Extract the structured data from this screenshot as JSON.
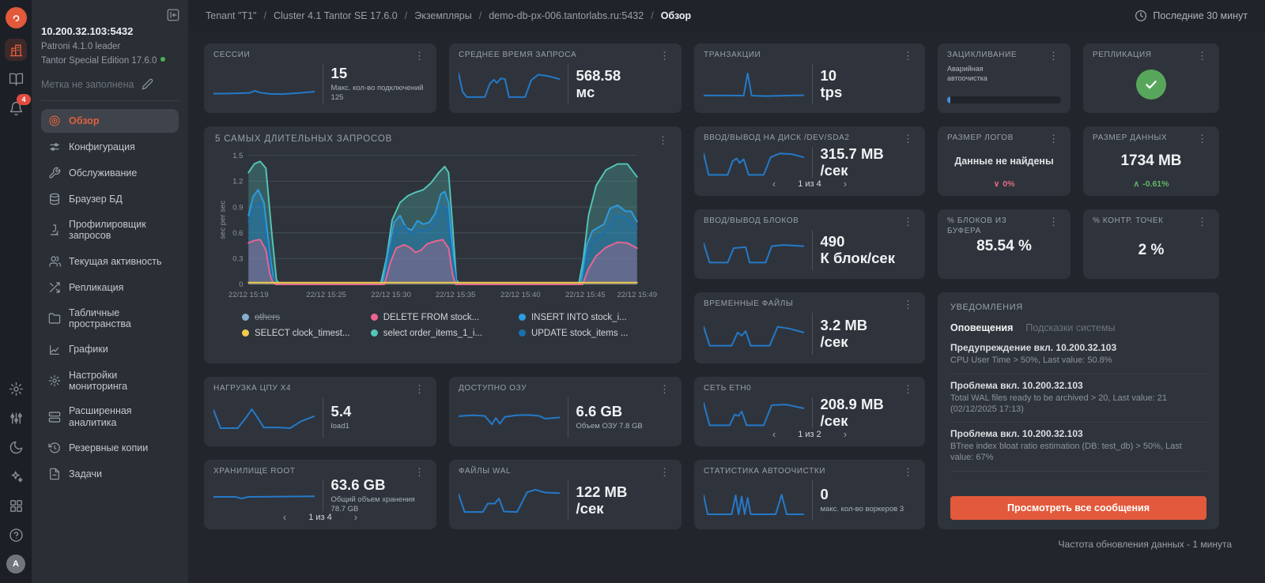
{
  "topbar": {
    "breadcrumbs": [
      "Tenant \"T1\"",
      "Cluster 4.1 Tantor SE 17.6.0",
      "Экземпляры",
      "demo-db-px-006.tantorlabs.ru:5432",
      "Обзор"
    ],
    "time_range": "Последние 30 минут"
  },
  "rail": {
    "notifications_badge": "4",
    "avatar_initial": "A"
  },
  "sidebar": {
    "host": "10.200.32.103:5432",
    "agent": "Patroni 4.1.0 leader",
    "edition": "Tantor Special Edition 17.6.0",
    "label_placeholder": "Метка не заполнена",
    "menu": [
      {
        "label": "Обзор",
        "active": true
      },
      {
        "label": "Конфигурация"
      },
      {
        "label": "Обслуживание"
      },
      {
        "label": "Браузер БД"
      },
      {
        "label": "Профилировщик запросов"
      },
      {
        "label": "Текущая активность"
      },
      {
        "label": "Репликация"
      },
      {
        "label": "Табличные пространства"
      },
      {
        "label": "Графики"
      },
      {
        "label": "Настройки мониторинга"
      },
      {
        "label": "Расширенная аналитика"
      },
      {
        "label": "Резервные копии"
      },
      {
        "label": "Задачи"
      }
    ]
  },
  "colors": {
    "accent": "#e2593b",
    "spark": "#2479c9",
    "check_green": "#58a65c",
    "trend_down": "#e56a86",
    "trend_up": "#63b567"
  },
  "cards": {
    "sessions": {
      "title": "СЕССИИ",
      "value": "15",
      "subtitle": "Макс. кол-во подключений 125",
      "spark": [
        [
          0,
          24
        ],
        [
          12,
          24
        ],
        [
          26,
          25
        ],
        [
          36,
          26
        ],
        [
          41,
          33
        ],
        [
          46,
          27
        ],
        [
          56,
          23
        ],
        [
          68,
          22
        ],
        [
          82,
          25
        ],
        [
          100,
          30
        ]
      ]
    },
    "avg_query": {
      "title": "СРЕДНЕЕ ВРЕМЯ ЗАПРОСА",
      "value": "568.58",
      "unit": "мс",
      "spark": [
        [
          0,
          88
        ],
        [
          4,
          30
        ],
        [
          8,
          13
        ],
        [
          26,
          13
        ],
        [
          31,
          55
        ],
        [
          35,
          68
        ],
        [
          38,
          58
        ],
        [
          42,
          72
        ],
        [
          46,
          70
        ],
        [
          50,
          13
        ],
        [
          66,
          13
        ],
        [
          72,
          66
        ],
        [
          79,
          84
        ],
        [
          88,
          80
        ],
        [
          100,
          70
        ]
      ]
    },
    "transactions": {
      "title": "ТРАНЗАКЦИИ",
      "value": "10",
      "unit": "tps",
      "spark": [
        [
          0,
          18
        ],
        [
          30,
          18
        ],
        [
          40,
          17
        ],
        [
          44,
          88
        ],
        [
          48,
          17
        ],
        [
          62,
          16
        ],
        [
          80,
          17
        ],
        [
          100,
          19
        ]
      ]
    },
    "wraparound": {
      "title": "ЗАЦИКЛИВАНИЕ",
      "label": "Аварийная автоочистка"
    },
    "replication": {
      "title": "РЕПЛИКАЦИЯ"
    },
    "disk_io": {
      "title": "ВВОД/ВЫВОД НА ДИСК /DEV/SDA2",
      "value": "315.7 MB",
      "unit": "/сек",
      "pager": "1 из 4",
      "spark": [
        [
          0,
          82
        ],
        [
          5,
          14
        ],
        [
          24,
          14
        ],
        [
          29,
          58
        ],
        [
          33,
          66
        ],
        [
          36,
          52
        ],
        [
          40,
          64
        ],
        [
          45,
          14
        ],
        [
          60,
          14
        ],
        [
          67,
          70
        ],
        [
          76,
          82
        ],
        [
          88,
          80
        ],
        [
          100,
          70
        ]
      ]
    },
    "log_size": {
      "title": "РАЗМЕР ЛОГОВ",
      "empty_text": "Данные не найдены",
      "trend": "0%"
    },
    "data_size": {
      "title": "РАЗМЕР ДАННЫХ",
      "value": "1734 MB",
      "trend": "-0.61%"
    },
    "block_io": {
      "title": "ВВОД/ВЫВОД БЛОКОВ",
      "value": "490",
      "unit": "К блок/сек",
      "spark": [
        [
          0,
          75
        ],
        [
          6,
          14
        ],
        [
          24,
          14
        ],
        [
          30,
          60
        ],
        [
          42,
          63
        ],
        [
          46,
          14
        ],
        [
          62,
          14
        ],
        [
          68,
          66
        ],
        [
          80,
          70
        ],
        [
          100,
          66
        ]
      ]
    },
    "buffer_pct": {
      "title": "% БЛОКОВ ИЗ БУФЕРА",
      "value": "85.54 %"
    },
    "checkpoint_pct": {
      "title": "% КОНТР. ТОЧЕК",
      "value": "2 %"
    },
    "temp_files": {
      "title": "ВРЕМЕННЫЕ ФАЙЛЫ",
      "value": "3.2 MB",
      "unit": "/сек",
      "spark": [
        [
          0,
          76
        ],
        [
          6,
          16
        ],
        [
          28,
          16
        ],
        [
          34,
          58
        ],
        [
          38,
          48
        ],
        [
          42,
          62
        ],
        [
          47,
          16
        ],
        [
          66,
          16
        ],
        [
          74,
          76
        ],
        [
          86,
          70
        ],
        [
          100,
          58
        ]
      ]
    },
    "cpu_load": {
      "title": "НАГРУЗКА ЦПУ X4",
      "value": "5.4",
      "subtitle": "load1",
      "spark": [
        [
          0,
          78
        ],
        [
          7,
          20
        ],
        [
          24,
          20
        ],
        [
          32,
          52
        ],
        [
          38,
          80
        ],
        [
          44,
          52
        ],
        [
          50,
          22
        ],
        [
          64,
          22
        ],
        [
          76,
          20
        ],
        [
          87,
          42
        ],
        [
          100,
          58
        ]
      ]
    },
    "ram": {
      "title": "ДОСТУПНО ОЗУ",
      "value": "6.6 GB",
      "subtitle": "Объем ОЗУ 7.8 GB",
      "spark": [
        [
          0,
          58
        ],
        [
          14,
          61
        ],
        [
          26,
          59
        ],
        [
          33,
          32
        ],
        [
          37,
          52
        ],
        [
          41,
          34
        ],
        [
          46,
          56
        ],
        [
          58,
          61
        ],
        [
          70,
          62
        ],
        [
          80,
          59
        ],
        [
          86,
          50
        ],
        [
          100,
          54
        ]
      ]
    },
    "network": {
      "title": "СЕТЬ ETH0",
      "value": "208.9 MB",
      "unit": "/сек",
      "pager": "1 из 2",
      "spark": [
        [
          0,
          85
        ],
        [
          6,
          14
        ],
        [
          26,
          14
        ],
        [
          31,
          48
        ],
        [
          35,
          44
        ],
        [
          38,
          58
        ],
        [
          43,
          14
        ],
        [
          60,
          14
        ],
        [
          68,
          78
        ],
        [
          82,
          80
        ],
        [
          100,
          68
        ]
      ]
    },
    "storage": {
      "title": "ХРАНИЛИЩЕ ROOT",
      "value": "63.6 GB",
      "subtitle": "Общий объем хранения 78.7 GB",
      "pager": "1 из 4",
      "spark": [
        [
          0,
          50
        ],
        [
          22,
          50
        ],
        [
          28,
          45
        ],
        [
          34,
          50
        ],
        [
          70,
          51
        ],
        [
          100,
          52
        ]
      ]
    },
    "wal": {
      "title": "ФАЙЛЫ WAL",
      "value": "122 MB",
      "unit": "/сек",
      "spark": [
        [
          0,
          74
        ],
        [
          6,
          17
        ],
        [
          24,
          17
        ],
        [
          29,
          44
        ],
        [
          36,
          44
        ],
        [
          40,
          60
        ],
        [
          45,
          19
        ],
        [
          58,
          17
        ],
        [
          68,
          80
        ],
        [
          76,
          88
        ],
        [
          86,
          79
        ],
        [
          100,
          77
        ]
      ]
    },
    "autovacuum": {
      "title": "СТАТИСТИКА АВТООЧИСТКИ",
      "value": "0",
      "subtitle": "макс. кол-во воркеров 3",
      "spark": [
        [
          0,
          70
        ],
        [
          4,
          10
        ],
        [
          28,
          10
        ],
        [
          32,
          70
        ],
        [
          35,
          10
        ],
        [
          38,
          66
        ],
        [
          41,
          10
        ],
        [
          44,
          62
        ],
        [
          47,
          10
        ],
        [
          72,
          10
        ],
        [
          78,
          72
        ],
        [
          83,
          10
        ],
        [
          100,
          10
        ]
      ]
    }
  },
  "chart_data": {
    "type": "area",
    "title": "5 САМЫХ ДЛИТЕЛЬНЫХ ЗАПРОСОВ",
    "ylabel": "sec per sec",
    "ylim": [
      0,
      1.5
    ],
    "yticks": [
      0,
      0.3,
      0.6,
      0.9,
      1.2,
      1.5
    ],
    "grid": true,
    "legend_position": "bottom",
    "xticks": [
      {
        "label": "22/12 15:19",
        "pos": 0
      },
      {
        "label": "22/12 15:25",
        "pos": 0.2
      },
      {
        "label": "22/12 15:30",
        "pos": 0.367
      },
      {
        "label": "22/12 15:35",
        "pos": 0.533
      },
      {
        "label": "22/12 15:40",
        "pos": 0.7
      },
      {
        "label": "22/12 15:45",
        "pos": 0.867
      },
      {
        "label": "22/12 15:49",
        "pos": 1
      }
    ],
    "series": [
      {
        "name": "others",
        "color": "#86aecb",
        "disabled": true,
        "points": []
      },
      {
        "name": "DELETE FROM stock...",
        "color": "#ee6490",
        "points": [
          [
            0,
            0.48
          ],
          [
            0.015,
            0.51
          ],
          [
            0.03,
            0.52
          ],
          [
            0.045,
            0.4
          ],
          [
            0.055,
            0.12
          ],
          [
            0.063,
            0.02
          ],
          [
            0.07,
            0
          ],
          [
            0.35,
            0
          ],
          [
            0.365,
            0.25
          ],
          [
            0.38,
            0.42
          ],
          [
            0.4,
            0.46
          ],
          [
            0.415,
            0.43
          ],
          [
            0.43,
            0.37
          ],
          [
            0.445,
            0.4
          ],
          [
            0.46,
            0.47
          ],
          [
            0.48,
            0.5
          ],
          [
            0.5,
            0.52
          ],
          [
            0.515,
            0.42
          ],
          [
            0.525,
            0.12
          ],
          [
            0.533,
            0
          ],
          [
            0.86,
            0
          ],
          [
            0.875,
            0.18
          ],
          [
            0.895,
            0.33
          ],
          [
            0.92,
            0.43
          ],
          [
            0.95,
            0.49
          ],
          [
            0.975,
            0.48
          ],
          [
            1,
            0.42
          ]
        ]
      },
      {
        "name": "INSERT INTO stock_i...",
        "color": "#2b9de4",
        "points": [
          [
            0,
            0.8
          ],
          [
            0.012,
            1.02
          ],
          [
            0.025,
            1.1
          ],
          [
            0.04,
            0.95
          ],
          [
            0.055,
            0.35
          ],
          [
            0.065,
            0.05
          ],
          [
            0.072,
            0
          ],
          [
            0.345,
            0
          ],
          [
            0.36,
            0.4
          ],
          [
            0.375,
            0.72
          ],
          [
            0.39,
            0.8
          ],
          [
            0.405,
            0.66
          ],
          [
            0.42,
            0.63
          ],
          [
            0.435,
            0.74
          ],
          [
            0.45,
            0.7
          ],
          [
            0.465,
            0.72
          ],
          [
            0.48,
            0.82
          ],
          [
            0.495,
            1.05
          ],
          [
            0.505,
            1.08
          ],
          [
            0.515,
            0.95
          ],
          [
            0.525,
            0.4
          ],
          [
            0.535,
            0.03
          ],
          [
            0.545,
            0
          ],
          [
            0.855,
            0
          ],
          [
            0.87,
            0.45
          ],
          [
            0.885,
            0.62
          ],
          [
            0.9,
            0.66
          ],
          [
            0.915,
            0.7
          ],
          [
            0.93,
            0.88
          ],
          [
            0.95,
            0.92
          ],
          [
            0.97,
            0.85
          ],
          [
            0.985,
            0.85
          ],
          [
            1,
            0.73
          ]
        ]
      },
      {
        "name": "SELECT clock_timest...",
        "color": "#f2c94c",
        "points": [
          [
            0,
            0.02
          ],
          [
            1,
            0.02
          ]
        ]
      },
      {
        "name": "select order_items_1_i...",
        "color": "#52c7b8",
        "points": [
          [
            0,
            1.3
          ],
          [
            0.015,
            1.4
          ],
          [
            0.03,
            1.43
          ],
          [
            0.045,
            1.35
          ],
          [
            0.06,
            0.6
          ],
          [
            0.072,
            0.05
          ],
          [
            0.08,
            0
          ],
          [
            0.34,
            0
          ],
          [
            0.355,
            0.3
          ],
          [
            0.37,
            0.75
          ],
          [
            0.39,
            0.95
          ],
          [
            0.41,
            1.03
          ],
          [
            0.43,
            1.07
          ],
          [
            0.45,
            1.1
          ],
          [
            0.47,
            1.18
          ],
          [
            0.49,
            1.3
          ],
          [
            0.505,
            1.37
          ],
          [
            0.515,
            1.3
          ],
          [
            0.525,
            0.7
          ],
          [
            0.535,
            0.05
          ],
          [
            0.545,
            0
          ],
          [
            0.85,
            0
          ],
          [
            0.862,
            0.3
          ],
          [
            0.875,
            0.8
          ],
          [
            0.895,
            1.15
          ],
          [
            0.92,
            1.33
          ],
          [
            0.95,
            1.4
          ],
          [
            0.975,
            1.4
          ],
          [
            1,
            1.25
          ]
        ]
      },
      {
        "name": "UPDATE stock_items ...",
        "color": "#1b6fae",
        "points": [
          [
            0,
            0.72
          ],
          [
            0.015,
            0.9
          ],
          [
            0.03,
            0.95
          ],
          [
            0.045,
            0.6
          ],
          [
            0.06,
            0.1
          ],
          [
            0.07,
            0
          ],
          [
            0.35,
            0
          ],
          [
            0.365,
            0.35
          ],
          [
            0.38,
            0.62
          ],
          [
            0.4,
            0.68
          ],
          [
            0.42,
            0.58
          ],
          [
            0.44,
            0.64
          ],
          [
            0.46,
            0.62
          ],
          [
            0.48,
            0.72
          ],
          [
            0.495,
            0.9
          ],
          [
            0.51,
            0.88
          ],
          [
            0.525,
            0.3
          ],
          [
            0.535,
            0
          ],
          [
            0.86,
            0
          ],
          [
            0.875,
            0.4
          ],
          [
            0.895,
            0.55
          ],
          [
            0.92,
            0.62
          ],
          [
            0.945,
            0.8
          ],
          [
            0.97,
            0.78
          ],
          [
            1,
            0.66
          ]
        ]
      }
    ]
  },
  "notifications": {
    "title": "УВЕДОМЛЕНИЯ",
    "tabs": [
      {
        "label": "Оповещения",
        "active": true
      },
      {
        "label": "Подсказки системы"
      }
    ],
    "items": [
      {
        "title": "Предупреждение вкл. 10.200.32.103",
        "desc": "CPU User Time > 50%, Last value: 50.8%"
      },
      {
        "title": "Проблема вкл. 10.200.32.103",
        "desc": "Total WAL files ready to be archived > 20, Last value: 21 (02/12/2025 17:13)"
      },
      {
        "title": "Проблема вкл. 10.200.32.103",
        "desc": "BTree index bloat ratio estimation (DB: test_db) > 50%, Last value: 67%"
      }
    ],
    "button": "Просмотреть все сообщения"
  },
  "footer": "Частота обновления данных - 1 минута"
}
